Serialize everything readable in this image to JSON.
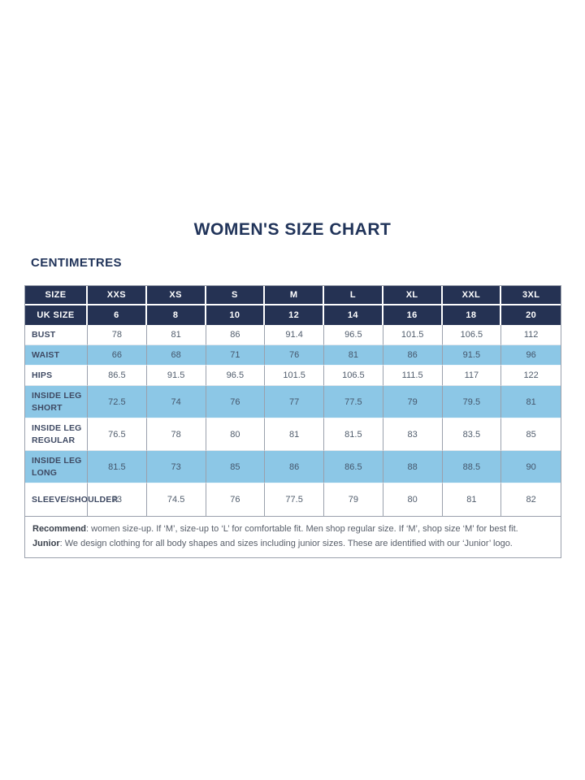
{
  "title": "WOMEN'S SIZE CHART",
  "units_label": "CENTIMETRES",
  "colors": {
    "navy_header": "#253253",
    "light_blue_row": "#8cc7e6",
    "heading_text": "#21345a",
    "body_text": "#505c6c"
  },
  "table": {
    "size_header": {
      "label": "SIZE",
      "values": [
        "XXS",
        "XS",
        "S",
        "M",
        "L",
        "XL",
        "XXL",
        "3XL"
      ]
    },
    "uk_size_header": {
      "label": "UK SIZE",
      "values": [
        "6",
        "8",
        "10",
        "12",
        "14",
        "16",
        "18",
        "20"
      ]
    },
    "rows": [
      {
        "label": "BUST",
        "shade": false,
        "values": [
          "78",
          "81",
          "86",
          "91.4",
          "96.5",
          "101.5",
          "106.5",
          "112"
        ]
      },
      {
        "label": "WAIST",
        "shade": true,
        "values": [
          "66",
          "68",
          "71",
          "76",
          "81",
          "86",
          "91.5",
          "96"
        ]
      },
      {
        "label": "HIPS",
        "shade": false,
        "values": [
          "86.5",
          "91.5",
          "96.5",
          "101.5",
          "106.5",
          "111.5",
          "117",
          "122"
        ]
      },
      {
        "label": "INSIDE LEG SHORT",
        "shade": true,
        "values": [
          "72.5",
          "74",
          "76",
          "77",
          "77.5",
          "79",
          "79.5",
          "81"
        ]
      },
      {
        "label": "INSIDE LEG REGULAR",
        "shade": false,
        "values": [
          "76.5",
          "78",
          "80",
          "81",
          "81.5",
          "83",
          "83.5",
          "85"
        ]
      },
      {
        "label": "INSIDE LEG LONG",
        "shade": true,
        "values": [
          "81.5",
          "73",
          "85",
          "86",
          "86.5",
          "88",
          "88.5",
          "90"
        ]
      },
      {
        "label": "SLEEVE/SHOULDER",
        "shade": false,
        "values": [
          "73",
          "74.5",
          "76",
          "77.5",
          "79",
          "80",
          "81",
          "82"
        ]
      }
    ]
  },
  "notes": [
    {
      "label": "Recommend",
      "text": ": women size-up. If ‘M’, size-up to ‘L’ for comfortable fit. Men shop regular size. If ‘M’, shop size ‘M’ for best fit."
    },
    {
      "label": "Junior",
      "text": ": We design clothing for all body shapes and sizes including junior sizes. These are identified with our ‘Junior’ logo."
    }
  ]
}
